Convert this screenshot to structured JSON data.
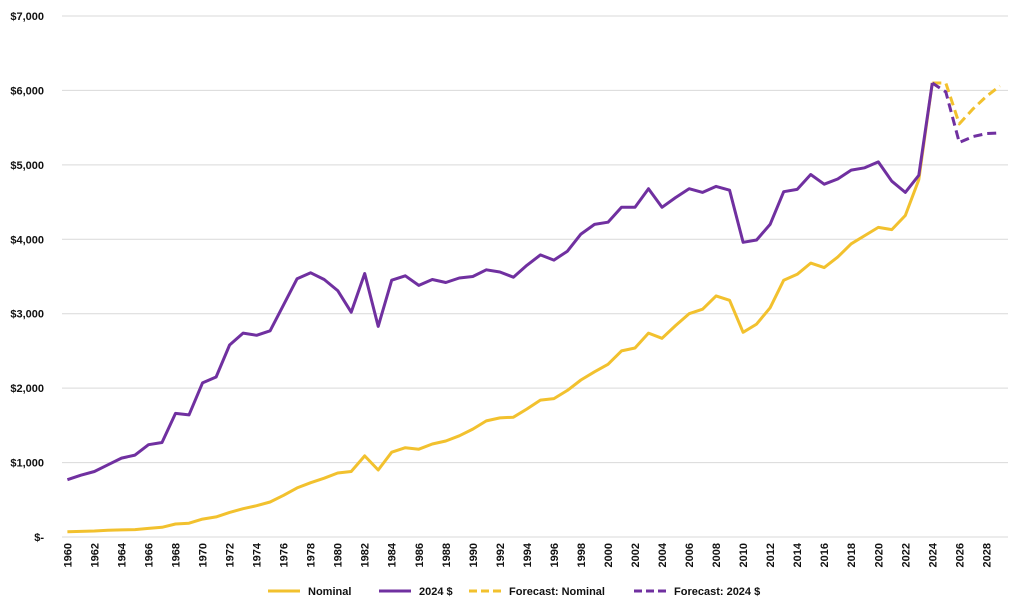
{
  "chart_data": {
    "type": "line",
    "title": "",
    "xlabel": "",
    "ylabel": "",
    "ylim": [
      0,
      7000
    ],
    "xlim": [
      1960,
      2029
    ],
    "grid": true,
    "legend_position": "bottom",
    "y_ticks": [
      0,
      1000,
      2000,
      3000,
      4000,
      5000,
      6000,
      7000
    ],
    "y_tick_labels": [
      "$-",
      "$1,000",
      "$2,000",
      "$3,000",
      "$4,000",
      "$5,000",
      "$6,000",
      "$7,000"
    ],
    "x_ticks": [
      1960,
      1962,
      1964,
      1966,
      1968,
      1970,
      1972,
      1974,
      1976,
      1978,
      1980,
      1982,
      1984,
      1986,
      1988,
      1990,
      1992,
      1994,
      1996,
      1998,
      2000,
      2002,
      2004,
      2006,
      2008,
      2010,
      2012,
      2014,
      2016,
      2018,
      2020,
      2022,
      2024,
      2026,
      2028
    ],
    "x_tick_labels": [
      "1960",
      "1962",
      "1964",
      "1966",
      "1968",
      "1970",
      "1972",
      "1974",
      "1976",
      "1978",
      "1980",
      "1982",
      "1984",
      "1986",
      "1988",
      "1990",
      "1992",
      "1994",
      "1996",
      "1998",
      "2000",
      "2002",
      "2004",
      "2006",
      "2008",
      "2010",
      "2012",
      "2014",
      "2016",
      "2018",
      "2020",
      "2022",
      "2024",
      "2026",
      "2028"
    ],
    "series": [
      {
        "name": "Nominal",
        "color": "#f2c12e",
        "dashed": false,
        "x": [
          1960,
          1961,
          1962,
          1963,
          1964,
          1965,
          1966,
          1967,
          1968,
          1969,
          1970,
          1971,
          1972,
          1973,
          1974,
          1975,
          1976,
          1977,
          1978,
          1979,
          1980,
          1981,
          1982,
          1983,
          1984,
          1985,
          1986,
          1987,
          1988,
          1989,
          1990,
          1991,
          1992,
          1993,
          1994,
          1995,
          1996,
          1997,
          1998,
          1999,
          2000,
          2001,
          2002,
          2003,
          2004,
          2005,
          2006,
          2007,
          2008,
          2009,
          2010,
          2011,
          2012,
          2013,
          2014,
          2015,
          2016,
          2017,
          2018,
          2019,
          2020,
          2021,
          2022,
          2023,
          2024
        ],
        "values": [
          70,
          75,
          80,
          90,
          95,
          100,
          115,
          130,
          175,
          185,
          240,
          270,
          330,
          380,
          420,
          470,
          560,
          660,
          730,
          790,
          860,
          880,
          1090,
          900,
          1140,
          1200,
          1180,
          1250,
          1290,
          1360,
          1450,
          1560,
          1600,
          1610,
          1720,
          1840,
          1860,
          1970,
          2110,
          2220,
          2320,
          2500,
          2540,
          2740,
          2670,
          2840,
          3000,
          3060,
          3240,
          3180,
          2750,
          2860,
          3080,
          3450,
          3530,
          3680,
          3620,
          3760,
          3940,
          4050,
          4160,
          4130,
          4320,
          4800,
          6100
        ]
      },
      {
        "name": "2024 $",
        "color": "#7030a0",
        "dashed": false,
        "x": [
          1960,
          1961,
          1962,
          1963,
          1964,
          1965,
          1966,
          1967,
          1968,
          1969,
          1970,
          1971,
          1972,
          1973,
          1974,
          1975,
          1976,
          1977,
          1978,
          1979,
          1980,
          1981,
          1982,
          1983,
          1984,
          1985,
          1986,
          1987,
          1988,
          1989,
          1990,
          1991,
          1992,
          1993,
          1994,
          1995,
          1996,
          1997,
          1998,
          1999,
          2000,
          2001,
          2002,
          2003,
          2004,
          2005,
          2006,
          2007,
          2008,
          2009,
          2010,
          2011,
          2012,
          2013,
          2014,
          2015,
          2016,
          2017,
          2018,
          2019,
          2020,
          2021,
          2022,
          2023,
          2024
        ],
        "values": [
          770,
          830,
          880,
          970,
          1060,
          1100,
          1240,
          1270,
          1660,
          1640,
          2070,
          2150,
          2580,
          2740,
          2710,
          2770,
          3120,
          3470,
          3550,
          3460,
          3310,
          3020,
          3540,
          2830,
          3450,
          3510,
          3380,
          3460,
          3420,
          3480,
          3500,
          3590,
          3560,
          3490,
          3650,
          3790,
          3720,
          3840,
          4070,
          4200,
          4230,
          4430,
          4430,
          4680,
          4430,
          4560,
          4680,
          4630,
          4710,
          4660,
          3960,
          3990,
          4200,
          4640,
          4670,
          4870,
          4740,
          4810,
          4930,
          4960,
          5040,
          4780,
          4630,
          4860,
          6100
        ]
      },
      {
        "name": "Forecast: Nominal",
        "color": "#f2c12e",
        "dashed": true,
        "x": [
          2024,
          2025,
          2026,
          2027,
          2028,
          2029
        ],
        "values": [
          6100,
          6100,
          5550,
          5750,
          5920,
          6060
        ]
      },
      {
        "name": "Forecast: 2024 $",
        "color": "#7030a0",
        "dashed": true,
        "x": [
          2024,
          2025,
          2026,
          2027,
          2028,
          2029
        ],
        "values": [
          6100,
          5980,
          5300,
          5380,
          5420,
          5430
        ]
      }
    ]
  }
}
